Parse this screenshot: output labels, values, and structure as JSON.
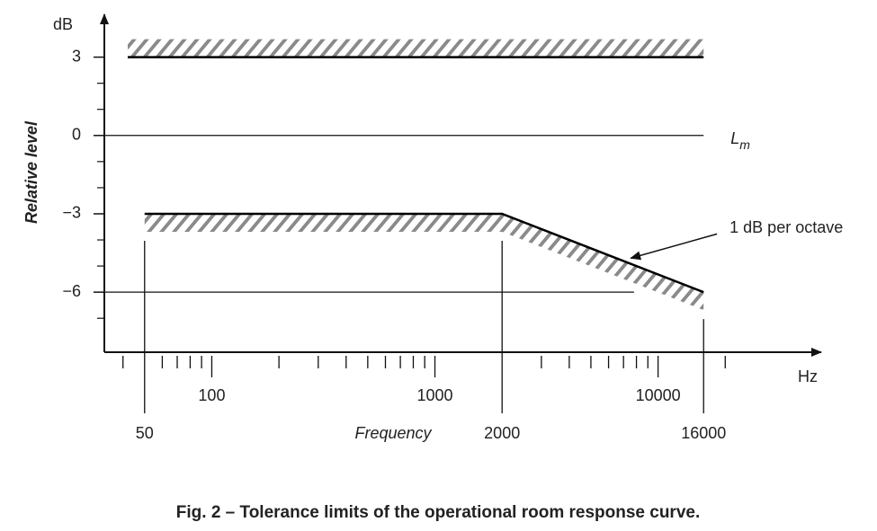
{
  "chart_data": {
    "type": "line",
    "title": "Fig. 2 – Tolerance limits of the operational room response curve.",
    "x_label": "Frequency",
    "x_unit": "Hz",
    "y_label": "Relative level",
    "y_unit": "dB",
    "log_x": true,
    "xlim": [
      33,
      50000
    ],
    "ylim": [
      -8.3,
      4.5
    ],
    "xticks": [
      100,
      1000,
      10000
    ],
    "xticks_marked": [
      50,
      2000,
      16000
    ],
    "x_minor_ticks": [
      40,
      60,
      70,
      80,
      90,
      200,
      300,
      400,
      500,
      600,
      700,
      800,
      900,
      3000,
      4000,
      5000,
      6000,
      7000,
      8000,
      9000,
      20000
    ],
    "yticks": [
      3,
      0,
      {
        "value": -3,
        "label": "−3"
      },
      {
        "value": -6,
        "label": "−6"
      }
    ],
    "y_minor_ticks": [
      2,
      1,
      -1,
      -2,
      -4,
      -5,
      -7
    ],
    "series": [
      {
        "color": "#000000",
        "hatch": "above",
        "x": [
          42,
          16000
        ],
        "values": [
          3,
          3
        ]
      },
      {
        "color": "#000000",
        "hatch": "below",
        "x": [
          50,
          2000,
          16000
        ],
        "values": [
          -3,
          -3,
          -6
        ]
      }
    ],
    "reference_lines": [
      {
        "y": 0,
        "x": [
          33,
          16000
        ],
        "label": "L",
        "label_sub": "m"
      },
      {
        "y": -6,
        "x": [
          33,
          7800
        ]
      }
    ],
    "annotation": {
      "text": "1 dB per octave",
      "x": 7400,
      "y": -4.7
    },
    "hatch_color": "#8a8a8a"
  }
}
